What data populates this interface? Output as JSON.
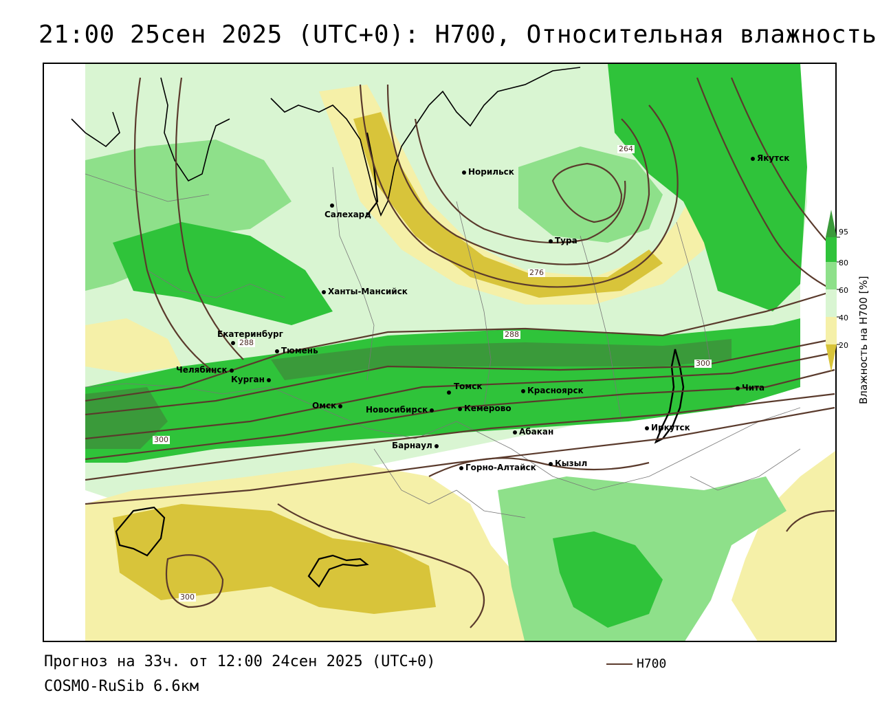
{
  "header": {
    "title": "21:00 25сен 2025 (UTC+0): H700, Относительная влажность"
  },
  "footer": {
    "forecast": "Прогноз на 33ч. от 12:00 24сен 2025 (UTC+0)",
    "model": "COSMO-RuSib 6.6км",
    "legend_line_label": "H700"
  },
  "colorbar": {
    "title": "Влажность на H700 [%]",
    "ticks": [
      "95",
      "80",
      "60",
      "40",
      "20"
    ],
    "colors": {
      "c95": "#3a9a3a",
      "c80": "#2fc33a",
      "c60": "#8ee08a",
      "c40": "#d9f5d2",
      "c30": "#ffffff",
      "c20": "#f5f0a8",
      "c10": "#d8c43a"
    }
  },
  "contour_color": "#5a3a2c",
  "contour_labels": [
    "264",
    "276",
    "288",
    "288",
    "300",
    "300",
    "300"
  ],
  "cities": [
    {
      "name": "Норильск"
    },
    {
      "name": "Якутск"
    },
    {
      "name": "Салехард"
    },
    {
      "name": "Тура"
    },
    {
      "name": "Ханты-Мансийск"
    },
    {
      "name": "Екатеринбург"
    },
    {
      "name": "Тюмень"
    },
    {
      "name": "Челябинск"
    },
    {
      "name": "Курган"
    },
    {
      "name": "Томск"
    },
    {
      "name": "Красноярск"
    },
    {
      "name": "Чита"
    },
    {
      "name": "Омск"
    },
    {
      "name": "Новосибирск"
    },
    {
      "name": "Кемерово"
    },
    {
      "name": "Абакан"
    },
    {
      "name": "Иркутск"
    },
    {
      "name": "Барнаул"
    },
    {
      "name": "Горно-Алтайск"
    },
    {
      "name": "Кызыл"
    }
  ]
}
